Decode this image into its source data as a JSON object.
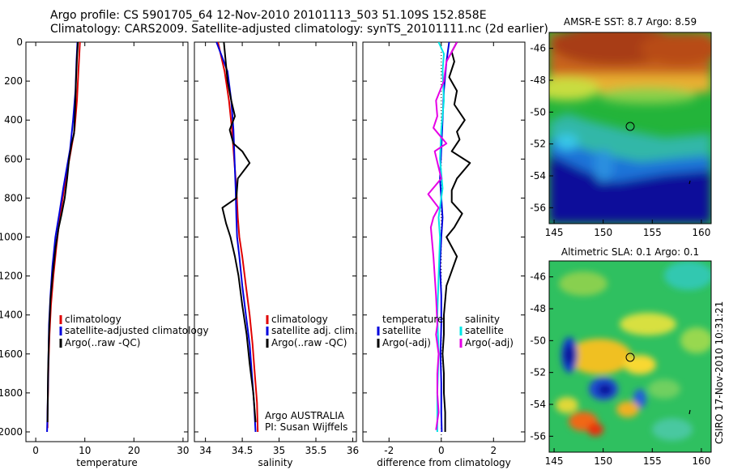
{
  "title": {
    "line1": "Argo profile: CS 5901705_64 12-Nov-2010 20101113_503 51.109S 152.858E",
    "line2": "Climatology: CARS2009. Satellite-adjusted climatology: synTS_20101111.nc (2d earlier)"
  },
  "credit": {
    "argo": "Argo AUSTRALIA",
    "pi": "PI: Susan Wijffels",
    "csiro": "CSIRO 17-Nov-2010 10:31:21"
  },
  "colors": {
    "climatology": "#e00000",
    "satellite": "#0000dd",
    "argo": "#000000",
    "satellite_salinity": "#00e6e6",
    "argo_salinity_diff": "#e600e6"
  },
  "chart_data": [
    {
      "type": "line",
      "xlabel": "temperature",
      "ylabel": "",
      "xlim": [
        -2,
        31
      ],
      "ylim": [
        2050,
        0
      ],
      "xticks": [
        0,
        10,
        20,
        30
      ],
      "yticks": [
        0,
        200,
        400,
        600,
        800,
        1000,
        1200,
        1400,
        1600,
        1800,
        2000
      ],
      "legend": [
        "climatology",
        "satellite-adjusted climatology",
        "Argo(..raw -QC)"
      ],
      "series": [
        {
          "name": "climatology",
          "color": "#e00000",
          "x": [
            9.0,
            8.9,
            8.7,
            8.4,
            7.9,
            7.2,
            6.5,
            5.8,
            4.9,
            4.2,
            3.6,
            3.1,
            2.8,
            2.6,
            2.5,
            2.4,
            2.4
          ],
          "y": [
            0,
            50,
            150,
            300,
            450,
            550,
            650,
            750,
            900,
            1050,
            1200,
            1350,
            1500,
            1650,
            1800,
            1900,
            1980
          ]
        },
        {
          "name": "satellite-adjusted climatology",
          "color": "#0000dd",
          "x": [
            8.5,
            8.3,
            8.1,
            7.6,
            7.0,
            6.3,
            5.6,
            4.8,
            4.0,
            3.4,
            3.0,
            2.7,
            2.6,
            2.5,
            2.4,
            2.3
          ],
          "y": [
            0,
            100,
            250,
            400,
            550,
            650,
            750,
            880,
            1000,
            1150,
            1300,
            1450,
            1600,
            1750,
            1900,
            2000
          ]
        },
        {
          "name": "Argo(..raw -QC)",
          "color": "#000000",
          "x": [
            8.6,
            8.4,
            8.2,
            8.0,
            7.8,
            7.3,
            6.8,
            6.4,
            5.9,
            5.3,
            4.6,
            4.0,
            3.5,
            3.0,
            2.7,
            2.5,
            2.4
          ],
          "y": [
            0,
            80,
            200,
            360,
            470,
            520,
            600,
            700,
            800,
            880,
            960,
            1060,
            1180,
            1320,
            1500,
            1700,
            1950
          ]
        }
      ]
    },
    {
      "type": "line",
      "xlabel": "salinity",
      "ylabel": "",
      "xlim": [
        33.85,
        36.05
      ],
      "ylim": [
        2050,
        0
      ],
      "xticks": [
        34,
        34.5,
        35,
        35.5,
        36
      ],
      "legend": [
        "climatology",
        "satellite adj. clim.",
        "Argo(..raw -QC)"
      ],
      "series": [
        {
          "name": "climatology",
          "color": "#e00000",
          "x": [
            34.17,
            34.2,
            34.26,
            34.32,
            34.36,
            34.38,
            34.4,
            34.42,
            34.44,
            34.46,
            34.5,
            34.55,
            34.6,
            34.64,
            34.67,
            34.7,
            34.71
          ],
          "y": [
            0,
            50,
            150,
            300,
            450,
            550,
            650,
            750,
            900,
            1000,
            1100,
            1250,
            1400,
            1550,
            1700,
            1850,
            2000
          ]
        },
        {
          "name": "satellite adj. clim.",
          "color": "#0000dd",
          "x": [
            34.15,
            34.2,
            34.3,
            34.35,
            34.38,
            34.39,
            34.4,
            34.41,
            34.42,
            34.43,
            34.46,
            34.5,
            34.55,
            34.6,
            34.63,
            34.66,
            34.68
          ],
          "y": [
            0,
            50,
            150,
            300,
            450,
            550,
            650,
            750,
            900,
            1000,
            1100,
            1250,
            1400,
            1550,
            1700,
            1850,
            2000
          ]
        },
        {
          "name": "Argo(..raw -QC)",
          "color": "#000000",
          "x": [
            34.25,
            34.27,
            34.3,
            34.35,
            34.4,
            34.33,
            34.38,
            34.5,
            34.6,
            34.44,
            34.42,
            34.23,
            34.28,
            34.34,
            34.4,
            34.45,
            34.5,
            34.56,
            34.6,
            34.65,
            34.68
          ],
          "y": [
            0,
            80,
            200,
            300,
            380,
            450,
            520,
            560,
            620,
            700,
            800,
            850,
            930,
            1000,
            1100,
            1200,
            1350,
            1500,
            1650,
            1800,
            1950
          ]
        }
      ]
    },
    {
      "type": "line",
      "xlabel": "difference from climatology",
      "ylabel": "",
      "xlim": [
        -3,
        3.2
      ],
      "ylim": [
        2050,
        0
      ],
      "xticks": [
        -2,
        0,
        2
      ],
      "legend": [
        "temperature",
        "satellite",
        "Argo(-adj)",
        "salinity",
        "satellite",
        "Argo(-adj)"
      ],
      "series": [
        {
          "name": "temperature satellite",
          "color": "#0000dd",
          "x": [
            0.3,
            0.2,
            0.1,
            0.05,
            0.0,
            -0.05,
            0.0,
            0.05,
            0.0,
            -0.05,
            0.0,
            0.0,
            -0.03,
            0.0,
            0.0,
            0.02
          ],
          "y": [
            0,
            100,
            250,
            400,
            550,
            700,
            800,
            900,
            1000,
            1150,
            1300,
            1450,
            1600,
            1750,
            1900,
            2000
          ]
        },
        {
          "name": "temperature Argo(-adj)",
          "color": "#000000",
          "x": [
            0.6,
            0.4,
            0.5,
            0.3,
            0.6,
            0.5,
            0.9,
            0.6,
            0.7,
            0.4,
            1.1,
            0.6,
            0.4,
            0.4,
            0.8,
            0.5,
            0.2,
            0.6,
            0.2,
            0.1,
            0.1,
            0.05,
            0.1,
            0.1,
            0.15,
            0.15
          ],
          "y": [
            0,
            50,
            100,
            180,
            250,
            320,
            400,
            460,
            500,
            560,
            620,
            700,
            760,
            820,
            880,
            950,
            1000,
            1100,
            1250,
            1400,
            1500,
            1600,
            1700,
            1800,
            1900,
            2000
          ]
        },
        {
          "name": "salinity satellite",
          "color": "#00e6e6",
          "x": [
            -0.1,
            0.1,
            0.05,
            0.1,
            0.0,
            -0.05,
            0.05,
            -0.1,
            -0.05,
            -0.1,
            -0.15,
            -0.1,
            -0.15,
            -0.15
          ],
          "y": [
            0,
            60,
            150,
            300,
            450,
            600,
            750,
            900,
            1000,
            1200,
            1400,
            1600,
            1800,
            2000
          ]
        },
        {
          "name": "salinity Argo(-adj)",
          "color": "#e600e6",
          "x": [
            0.6,
            0.4,
            0.2,
            0.1,
            -0.2,
            -0.15,
            -0.3,
            0.2,
            -0.25,
            0.0,
            -0.5,
            -0.1,
            -0.3,
            -0.4,
            -0.3,
            -0.25,
            -0.2,
            -0.15,
            -0.2,
            -0.1,
            -0.15,
            -0.15,
            -0.1,
            -0.2
          ],
          "y": [
            0,
            50,
            100,
            200,
            300,
            380,
            440,
            520,
            560,
            700,
            780,
            850,
            900,
            950,
            1100,
            1200,
            1300,
            1450,
            1500,
            1600,
            1700,
            1800,
            1900,
            1990
          ]
        }
      ]
    },
    {
      "type": "heatmap",
      "title": "AMSR-E SST: 8.7 Argo: 8.59",
      "xlim": [
        144.5,
        161
      ],
      "ylim": [
        -57,
        -45
      ],
      "xticks": [
        145,
        150,
        155,
        160
      ],
      "yticks": [
        -46,
        -48,
        -50,
        -52,
        -54,
        -56
      ],
      "marker": {
        "lon": 152.858,
        "lat": -51.109
      }
    },
    {
      "type": "heatmap",
      "title": "Altimetric SLA: 0.1 Argo: 0.1",
      "xlim": [
        144.5,
        161
      ],
      "ylim": [
        -57,
        -45
      ],
      "xticks": [
        145,
        150,
        155,
        160
      ],
      "yticks": [
        -46,
        -48,
        -50,
        -52,
        -54,
        -56
      ],
      "marker": {
        "lon": 152.858,
        "lat": -51.109
      }
    }
  ]
}
